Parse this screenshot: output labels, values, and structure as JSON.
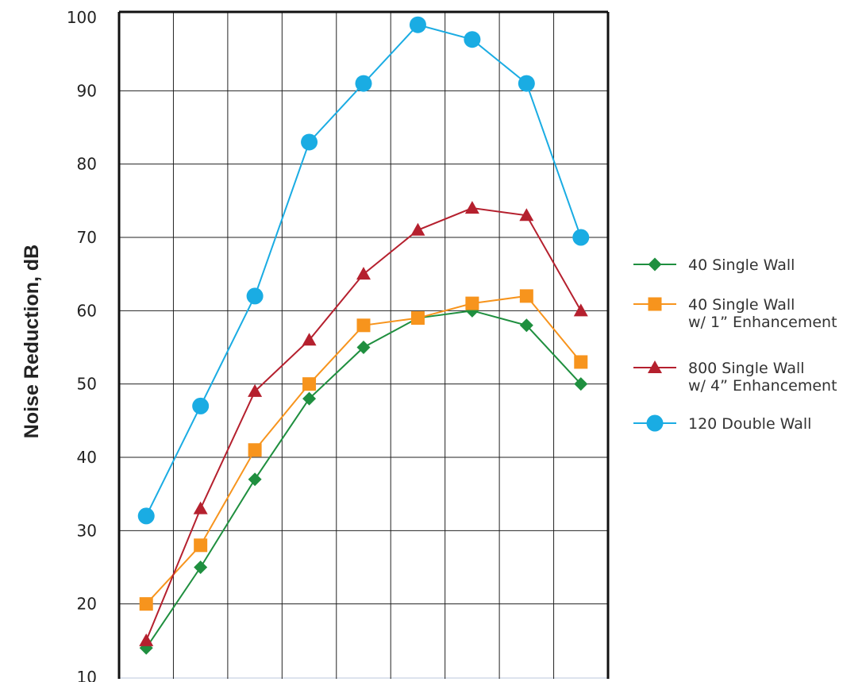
{
  "chart_data": {
    "type": "line",
    "title": "",
    "xlabel": "",
    "ylabel": "Noise Reduction, dB",
    "ylim": [
      10,
      100
    ],
    "yticks": [
      10,
      20,
      30,
      40,
      50,
      60,
      70,
      80,
      90,
      100
    ],
    "x": [
      1,
      2,
      3,
      4,
      5,
      6,
      7,
      8,
      9
    ],
    "grid": true,
    "legend_position": "right",
    "series": [
      {
        "name": "40 Single Wall",
        "name_line2": "",
        "color": "#1f8f3f",
        "marker": "diamond",
        "values": [
          14,
          25,
          37,
          48,
          55,
          59,
          60,
          58,
          50
        ]
      },
      {
        "name": "40 Single Wall",
        "name_line2": "w/ 1” Enhancement",
        "color": "#f7941d",
        "marker": "square",
        "values": [
          20,
          28,
          41,
          50,
          58,
          59,
          61,
          62,
          53
        ]
      },
      {
        "name": "800 Single Wall",
        "name_line2": "w/ 4” Enhancement",
        "color": "#b5202e",
        "marker": "triangle",
        "values": [
          15,
          33,
          49,
          56,
          65,
          71,
          74,
          73,
          60
        ]
      },
      {
        "name": "120 Double Wall",
        "name_line2": "",
        "color": "#1aace3",
        "marker": "circle",
        "values": [
          32,
          47,
          62,
          83,
          91,
          99,
          97,
          91,
          70
        ]
      }
    ]
  }
}
